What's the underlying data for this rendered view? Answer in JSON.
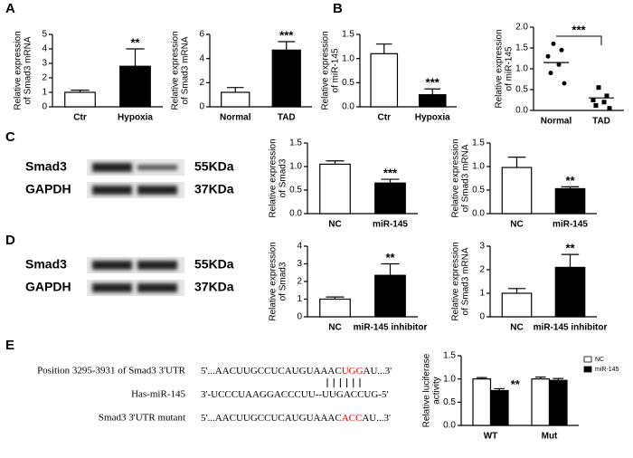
{
  "panel_labels": [
    "A",
    "B",
    "C",
    "D",
    "E"
  ],
  "blots": [
    {
      "rows": [
        {
          "protein": "Smad3",
          "size": "55KDa"
        },
        {
          "protein": "GAPDH",
          "size": "37KDa"
        }
      ]
    },
    {
      "rows": [
        {
          "protein": "Smad3",
          "size": "55KDa"
        },
        {
          "protein": "GAPDH",
          "size": "37KDa"
        }
      ]
    }
  ],
  "sequences": [
    {
      "label": "Position 3295-3931 of Smad3 3'UTR",
      "parts": [
        "5'...AACUUGCCUCAUGUAAAC",
        "UGG",
        "AU...3'"
      ]
    },
    {
      "label": "Has-miR-145",
      "parts": [
        "3'-UCCCUAAGGACCCUU--UUGACCUG-5'"
      ]
    },
    {
      "label": "Smad3 3'UTR mutant",
      "parts": [
        "5'...AACUUGCCUCAUGUAAAC",
        "ACC",
        "AU...3'"
      ]
    }
  ],
  "chart_data": [
    {
      "type": "bar",
      "ylabel": [
        "Relative expression",
        "of Smad3 mRNA"
      ],
      "categories": [
        "Ctr",
        "Hypoxia"
      ],
      "values": [
        1.0,
        2.8
      ],
      "errors": [
        0.15,
        1.2
      ],
      "colors": [
        "#ffffff",
        "#000000"
      ],
      "ylim": [
        0,
        5
      ],
      "yticks": [
        0,
        1,
        2,
        3,
        4,
        5
      ],
      "annotation": "**"
    },
    {
      "type": "bar",
      "ylabel": [
        "Relative expression",
        "of Smad3 mRNA"
      ],
      "categories": [
        "Normal",
        "TAD"
      ],
      "values": [
        1.2,
        4.7
      ],
      "errors": [
        0.4,
        0.7
      ],
      "colors": [
        "#ffffff",
        "#000000"
      ],
      "ylim": [
        0,
        6
      ],
      "yticks": [
        0,
        2,
        4,
        6
      ],
      "annotation": "***"
    },
    {
      "type": "bar",
      "ylabel": [
        "Relative expression",
        "of miR-145"
      ],
      "categories": [
        "Ctr",
        "Hypoxia"
      ],
      "values": [
        1.1,
        0.25
      ],
      "errors": [
        0.2,
        0.12
      ],
      "colors": [
        "#ffffff",
        "#000000"
      ],
      "ylim": [
        0,
        1.5
      ],
      "yticks": [
        {
          "value": 0,
          "label": "0.0"
        },
        0.5,
        {
          "value": 1,
          "label": "1.0"
        },
        1.5
      ],
      "annotation": "***"
    },
    {
      "type": "scatter",
      "ylabel": [
        "Relative expression",
        "of miR-145"
      ],
      "categories": [
        "Normal",
        "TAD"
      ],
      "points": [
        [
          1.6,
          1.45,
          1.3,
          1.1,
          0.9,
          0.65
        ],
        [
          0.55,
          0.35,
          0.25,
          0.2,
          0.12,
          0.05
        ]
      ],
      "means": [
        1.15,
        0.3
      ],
      "markers": [
        "circle",
        "square"
      ],
      "color": "#000000",
      "ylim": [
        0,
        2
      ],
      "yticks": [
        {
          "value": 0,
          "label": "0.0"
        },
        0.5,
        {
          "value": 1,
          "label": "1.0"
        },
        1.5,
        {
          "value": 2,
          "label": "2.0"
        }
      ],
      "annotation": "***"
    },
    {
      "type": "bar",
      "ylabel": [
        "Relative expression",
        "of Smad3"
      ],
      "categories": [
        "NC",
        "miR-145"
      ],
      "values": [
        1.05,
        0.65
      ],
      "errors": [
        0.07,
        0.08
      ],
      "colors": [
        "#ffffff",
        "#000000"
      ],
      "ylim": [
        0,
        1.5
      ],
      "yticks": [
        {
          "value": 0,
          "label": "0.0"
        },
        0.5,
        {
          "value": 1,
          "label": "1.0"
        },
        1.5
      ],
      "annotation": "***"
    },
    {
      "type": "bar",
      "ylabel": [
        "Relative expression",
        "of Smad3 mRNA"
      ],
      "categories": [
        "NC",
        "miR-145"
      ],
      "values": [
        0.98,
        0.53
      ],
      "errors": [
        0.22,
        0.04
      ],
      "colors": [
        "#ffffff",
        "#000000"
      ],
      "ylim": [
        0,
        1.5
      ],
      "yticks": [
        {
          "value": 0,
          "label": "0.0"
        },
        0.5,
        {
          "value": 1,
          "label": "1.0"
        },
        1.5
      ],
      "annotation": "**"
    },
    {
      "type": "bar",
      "ylabel": [
        "Relative expression",
        "of Smad3"
      ],
      "categories": [
        "NC",
        "miR-145 inhibitor"
      ],
      "values": [
        1.0,
        2.35
      ],
      "errors": [
        0.12,
        0.65
      ],
      "colors": [
        "#ffffff",
        "#000000"
      ],
      "ylim": [
        0,
        4
      ],
      "yticks": [
        0,
        1,
        2,
        3,
        4
      ],
      "annotation": "**"
    },
    {
      "type": "bar",
      "ylabel": [
        "Relative expression",
        "of Smad3 mRNA"
      ],
      "categories": [
        "NC",
        "miR-145 inhibitor"
      ],
      "values": [
        1.0,
        2.1
      ],
      "errors": [
        0.2,
        0.55
      ],
      "colors": [
        "#ffffff",
        "#000000"
      ],
      "ylim": [
        0,
        3
      ],
      "yticks": [
        0,
        1,
        2,
        3
      ],
      "annotation": "**"
    },
    {
      "type": "grouped-bar",
      "ylabel": [
        "Relative luciferase",
        "activity"
      ],
      "categories": [
        "WT",
        "Mut"
      ],
      "series": [
        {
          "name": "NC",
          "color": "#ffffff",
          "values": [
            1.0,
            1.0
          ],
          "errors": [
            0.03,
            0.04
          ]
        },
        {
          "name": "miR-145",
          "color": "#000000",
          "values": [
            0.75,
            0.97
          ],
          "errors": [
            0.04,
            0.04
          ]
        }
      ],
      "ylim": [
        0,
        1.5
      ],
      "yticks": [
        {
          "value": 0,
          "label": "0.0"
        },
        0.5,
        {
          "value": 1,
          "label": "1.0"
        },
        1.5
      ],
      "legend": "top-right",
      "annotation": "**"
    }
  ]
}
